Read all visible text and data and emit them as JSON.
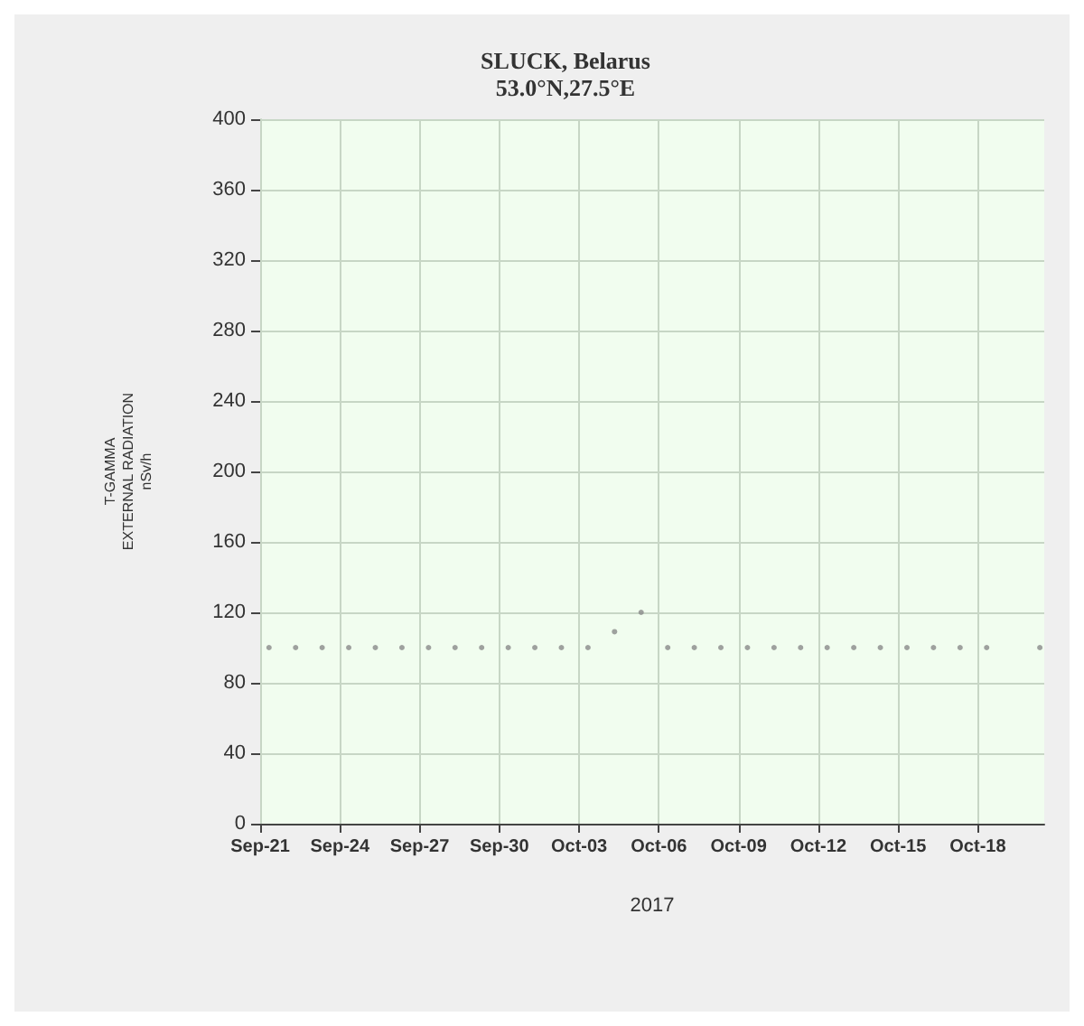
{
  "chart_data": {
    "type": "scatter",
    "title": "SLUCK, Belarus",
    "subtitle": "53.0°N,27.5°E",
    "ylabel": "T-GAMMA\nEXTERNAL RADIATION\nnSv/h",
    "xlabel": "2017",
    "x": [
      "2017-09-21T08:00",
      "2017-09-22T08:00",
      "2017-09-23T08:00",
      "2017-09-24T08:00",
      "2017-09-25T08:00",
      "2017-09-26T08:00",
      "2017-09-27T08:00",
      "2017-09-28T08:00",
      "2017-09-29T08:00",
      "2017-09-30T08:00",
      "2017-10-01T08:00",
      "2017-10-02T08:00",
      "2017-10-03T08:00",
      "2017-10-04T08:00",
      "2017-10-05T08:00",
      "2017-10-06T08:00",
      "2017-10-07T08:00",
      "2017-10-08T08:00",
      "2017-10-09T08:00",
      "2017-10-10T08:00",
      "2017-10-11T08:00",
      "2017-10-12T08:00",
      "2017-10-13T08:00",
      "2017-10-14T08:00",
      "2017-10-15T08:00",
      "2017-10-16T08:00",
      "2017-10-17T08:00",
      "2017-10-18T08:00",
      "2017-10-20T08:00"
    ],
    "values": [
      100,
      100,
      100,
      100,
      100,
      100,
      100,
      100,
      100,
      100,
      100,
      100,
      100,
      109,
      120,
      100,
      100,
      100,
      100,
      100,
      100,
      100,
      100,
      100,
      100,
      100,
      100,
      100,
      100
    ],
    "color": "#8a8a8a",
    "marker": "circle",
    "xlim": [
      "2017-09-21",
      "2017-10-20T12:00"
    ],
    "xticks": [
      {
        "value": "2017-09-21",
        "label": "Sep-21"
      },
      {
        "value": "2017-09-24",
        "label": "Sep-24"
      },
      {
        "value": "2017-09-27",
        "label": "Sep-27"
      },
      {
        "value": "2017-09-30",
        "label": "Sep-30"
      },
      {
        "value": "2017-10-03",
        "label": "Oct-03"
      },
      {
        "value": "2017-10-06",
        "label": "Oct-06"
      },
      {
        "value": "2017-10-09",
        "label": "Oct-09"
      },
      {
        "value": "2017-10-12",
        "label": "Oct-12"
      },
      {
        "value": "2017-10-15",
        "label": "Oct-15"
      },
      {
        "value": "2017-10-18",
        "label": "Oct-18"
      }
    ],
    "ylim": [
      0,
      400
    ],
    "yticks": [
      0,
      40,
      80,
      120,
      160,
      200,
      240,
      280,
      320,
      360,
      400
    ],
    "grid": true
  }
}
